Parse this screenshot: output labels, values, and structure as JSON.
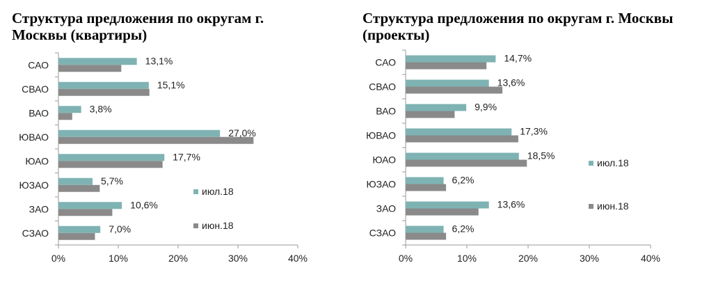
{
  "colors": {
    "jul": "#7fb3b3",
    "jun": "#8a8a8a",
    "axis": "#9a9a9a"
  },
  "chart_data": [
    {
      "type": "bar",
      "orientation": "horizontal",
      "title": "Структура предложения по округам г. Москвы (квартиры)",
      "title_lines": [
        "Структура предложения по округам г.",
        "Москвы (квартиры)"
      ],
      "categories": [
        "САО",
        "СВАО",
        "ВАО",
        "ЮВАО",
        "ЮАО",
        "ЮЗАО",
        "ЗАО",
        "СЗАО"
      ],
      "series": [
        {
          "name": "июл.18",
          "values": [
            13.1,
            15.1,
            3.8,
            27.0,
            17.7,
            5.7,
            10.6,
            7.0
          ]
        },
        {
          "name": "июн.18",
          "values": [
            10.5,
            15.2,
            2.3,
            32.6,
            17.4,
            6.9,
            9.0,
            6.1
          ]
        }
      ],
      "data_labels": [
        "13,1%",
        "15,1%",
        "3,8%",
        "27,0%",
        "17,7%",
        "5,7%",
        "10,6%",
        "7,0%"
      ],
      "xticks": [
        "0%",
        "10%",
        "20%",
        "30%",
        "40%"
      ],
      "xlim": [
        0,
        40
      ],
      "legend": "right",
      "grid": false
    },
    {
      "type": "bar",
      "orientation": "horizontal",
      "title": "Структура предложения по округам г. Москвы (проекты)",
      "title_lines": [
        "Структура предложения по округам г. Москвы",
        "(проекты)"
      ],
      "categories": [
        "САО",
        "СВАО",
        "ВАО",
        "ЮВАО",
        "ЮАО",
        "ЮЗАО",
        "ЗАО",
        "СЗАО"
      ],
      "series": [
        {
          "name": "июл.18",
          "values": [
            14.7,
            13.6,
            9.9,
            17.3,
            18.5,
            6.2,
            13.6,
            6.2
          ]
        },
        {
          "name": "июн.18",
          "values": [
            13.2,
            15.8,
            8.0,
            18.4,
            19.8,
            6.6,
            11.9,
            6.6
          ]
        }
      ],
      "data_labels": [
        "14,7%",
        "13,6%",
        "9,9%",
        "17,3%",
        "18,5%",
        "6,2%",
        "13,6%",
        "6,2%"
      ],
      "xticks": [
        "0%",
        "10%",
        "20%",
        "30%",
        "40%"
      ],
      "xlim": [
        0,
        40
      ],
      "legend": "right",
      "grid": false
    }
  ]
}
